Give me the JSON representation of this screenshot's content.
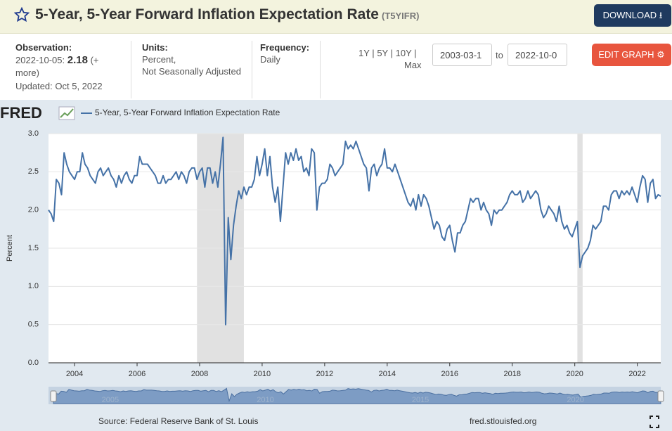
{
  "header": {
    "title": "5-Year, 5-Year Forward Inflation Expectation Rate",
    "series_id": "(T5YIFR)",
    "download": "DOWNLOAD"
  },
  "observation": {
    "label": "Observation:",
    "date": "2022-10-05:",
    "value": 2.18,
    "more": "(+ more)",
    "updated": "Updated: Oct 5, 2022"
  },
  "units": {
    "label": "Units:",
    "line1": "Percent,",
    "line2": "Not Seasonally Adjusted"
  },
  "frequency": {
    "label": "Frequency:",
    "value": "Daily"
  },
  "range": {
    "buttons": [
      "1Y",
      "5Y",
      "10Y",
      "Max"
    ],
    "separator": "|",
    "start": "2003-03-1",
    "to": "to",
    "end": "2022-10-0",
    "edit": "EDIT GRAPH"
  },
  "footer": {
    "logo": "FRED",
    "source": "Source: Federal Reserve Bank of St. Louis",
    "site": "fred.stlouisfed.org"
  },
  "chart_data": {
    "type": "line",
    "y_label": "Percent",
    "xlim": [
      "2003-03",
      "2022-10"
    ],
    "xticks": [
      2004,
      2006,
      2008,
      2010,
      2012,
      2014,
      2016,
      2018,
      2020,
      2022
    ],
    "ylim": [
      0,
      3
    ],
    "yticks": [
      {
        "value": 0,
        "label": "0.0"
      },
      {
        "value": 0.5,
        "label": "0.5"
      },
      {
        "value": 1,
        "label": "1.0"
      },
      {
        "value": 1.5,
        "label": "1.5"
      },
      {
        "value": 2,
        "label": "2.0"
      },
      {
        "value": 2.5,
        "label": "2.5"
      },
      {
        "value": 3,
        "label": "3.0"
      }
    ],
    "grid": true,
    "shaded_periods": [
      {
        "start": "2007-12",
        "end": "2009-06"
      },
      {
        "start": "2020-02",
        "end": "2020-04"
      }
    ],
    "navigator_ticks": [
      2005,
      2010,
      2015,
      2020
    ],
    "x": [
      "2003-03",
      "2003-04",
      "2003-05",
      "2003-06",
      "2003-07",
      "2003-08",
      "2003-09",
      "2003-10",
      "2003-11",
      "2003-12",
      "2004-01",
      "2004-02",
      "2004-03",
      "2004-04",
      "2004-05",
      "2004-06",
      "2004-07",
      "2004-08",
      "2004-09",
      "2004-10",
      "2004-11",
      "2004-12",
      "2005-01",
      "2005-02",
      "2005-03",
      "2005-04",
      "2005-05",
      "2005-06",
      "2005-07",
      "2005-08",
      "2005-09",
      "2005-10",
      "2005-11",
      "2005-12",
      "2006-01",
      "2006-02",
      "2006-03",
      "2006-04",
      "2006-05",
      "2006-06",
      "2006-07",
      "2006-08",
      "2006-09",
      "2006-10",
      "2006-11",
      "2006-12",
      "2007-01",
      "2007-02",
      "2007-03",
      "2007-04",
      "2007-05",
      "2007-06",
      "2007-07",
      "2007-08",
      "2007-09",
      "2007-10",
      "2007-11",
      "2007-12",
      "2008-01",
      "2008-02",
      "2008-03",
      "2008-04",
      "2008-05",
      "2008-06",
      "2008-07",
      "2008-08",
      "2008-09",
      "2008-10",
      "2008-11",
      "2008-12",
      "2009-01",
      "2009-02",
      "2009-03",
      "2009-04",
      "2009-05",
      "2009-06",
      "2009-07",
      "2009-08",
      "2009-09",
      "2009-10",
      "2009-11",
      "2009-12",
      "2010-01",
      "2010-02",
      "2010-03",
      "2010-04",
      "2010-05",
      "2010-06",
      "2010-07",
      "2010-08",
      "2010-09",
      "2010-10",
      "2010-11",
      "2010-12",
      "2011-01",
      "2011-02",
      "2011-03",
      "2011-04",
      "2011-05",
      "2011-06",
      "2011-07",
      "2011-08",
      "2011-09",
      "2011-10",
      "2011-11",
      "2011-12",
      "2012-01",
      "2012-02",
      "2012-03",
      "2012-04",
      "2012-05",
      "2012-06",
      "2012-07",
      "2012-08",
      "2012-09",
      "2012-10",
      "2012-11",
      "2012-12",
      "2013-01",
      "2013-02",
      "2013-03",
      "2013-04",
      "2013-05",
      "2013-06",
      "2013-07",
      "2013-08",
      "2013-09",
      "2013-10",
      "2013-11",
      "2013-12",
      "2014-01",
      "2014-02",
      "2014-03",
      "2014-04",
      "2014-05",
      "2014-06",
      "2014-07",
      "2014-08",
      "2014-09",
      "2014-10",
      "2014-11",
      "2014-12",
      "2015-01",
      "2015-02",
      "2015-03",
      "2015-04",
      "2015-05",
      "2015-06",
      "2015-07",
      "2015-08",
      "2015-09",
      "2015-10",
      "2015-11",
      "2015-12",
      "2016-01",
      "2016-02",
      "2016-03",
      "2016-04",
      "2016-05",
      "2016-06",
      "2016-07",
      "2016-08",
      "2016-09",
      "2016-10",
      "2016-11",
      "2016-12",
      "2017-01",
      "2017-02",
      "2017-03",
      "2017-04",
      "2017-05",
      "2017-06",
      "2017-07",
      "2017-08",
      "2017-09",
      "2017-10",
      "2017-11",
      "2017-12",
      "2018-01",
      "2018-02",
      "2018-03",
      "2018-04",
      "2018-05",
      "2018-06",
      "2018-07",
      "2018-08",
      "2018-09",
      "2018-10",
      "2018-11",
      "2018-12",
      "2019-01",
      "2019-02",
      "2019-03",
      "2019-04",
      "2019-05",
      "2019-06",
      "2019-07",
      "2019-08",
      "2019-09",
      "2019-10",
      "2019-11",
      "2019-12",
      "2020-01",
      "2020-02",
      "2020-03",
      "2020-04",
      "2020-05",
      "2020-06",
      "2020-07",
      "2020-08",
      "2020-09",
      "2020-10",
      "2020-11",
      "2020-12",
      "2021-01",
      "2021-02",
      "2021-03",
      "2021-04",
      "2021-05",
      "2021-06",
      "2021-07",
      "2021-08",
      "2021-09",
      "2021-10",
      "2021-11",
      "2021-12",
      "2022-01",
      "2022-02",
      "2022-03",
      "2022-04",
      "2022-05",
      "2022-06",
      "2022-07",
      "2022-08",
      "2022-09",
      "2022-10"
    ],
    "series": [
      {
        "name": "5-Year, 5-Year Forward Inflation Expectation Rate",
        "color": "#4572a7",
        "values": [
          2.0,
          1.95,
          1.85,
          2.4,
          2.35,
          2.2,
          2.75,
          2.6,
          2.5,
          2.45,
          2.4,
          2.5,
          2.5,
          2.75,
          2.6,
          2.55,
          2.45,
          2.4,
          2.35,
          2.5,
          2.55,
          2.45,
          2.5,
          2.55,
          2.45,
          2.4,
          2.3,
          2.45,
          2.35,
          2.45,
          2.5,
          2.4,
          2.35,
          2.45,
          2.45,
          2.7,
          2.6,
          2.6,
          2.6,
          2.55,
          2.5,
          2.45,
          2.35,
          2.35,
          2.45,
          2.35,
          2.4,
          2.4,
          2.45,
          2.5,
          2.4,
          2.5,
          2.45,
          2.35,
          2.5,
          2.55,
          2.55,
          2.4,
          2.5,
          2.55,
          2.3,
          2.55,
          2.55,
          2.35,
          2.5,
          2.3,
          2.6,
          2.95,
          0.5,
          1.9,
          1.35,
          1.8,
          2.05,
          2.25,
          2.15,
          2.3,
          2.2,
          2.3,
          2.3,
          2.4,
          2.7,
          2.45,
          2.6,
          2.8,
          2.45,
          2.7,
          2.3,
          2.1,
          2.3,
          1.85,
          2.3,
          2.75,
          2.6,
          2.75,
          2.65,
          2.8,
          2.65,
          2.7,
          2.5,
          2.55,
          2.45,
          2.8,
          2.75,
          2.0,
          2.3,
          2.35,
          2.35,
          2.4,
          2.6,
          2.55,
          2.45,
          2.5,
          2.55,
          2.6,
          2.9,
          2.8,
          2.85,
          2.8,
          2.9,
          2.8,
          2.7,
          2.6,
          2.55,
          2.25,
          2.55,
          2.6,
          2.45,
          2.55,
          2.6,
          2.8,
          2.55,
          2.55,
          2.5,
          2.6,
          2.5,
          2.4,
          2.3,
          2.2,
          2.1,
          2.05,
          2.15,
          2.0,
          2.2,
          2.05,
          2.2,
          2.15,
          2.05,
          1.9,
          1.75,
          1.85,
          1.8,
          1.65,
          1.6,
          1.75,
          1.8,
          1.6,
          1.45,
          1.7,
          1.7,
          1.8,
          1.85,
          2.0,
          2.15,
          2.1,
          2.15,
          2.15,
          2.0,
          2.1,
          2.0,
          1.95,
          1.8,
          2.0,
          1.95,
          2.0,
          2.0,
          2.05,
          2.1,
          2.2,
          2.25,
          2.2,
          2.2,
          2.25,
          2.1,
          2.15,
          2.25,
          2.15,
          2.2,
          2.25,
          2.2,
          2.0,
          1.9,
          1.95,
          2.05,
          2.0,
          1.95,
          1.85,
          2.05,
          1.85,
          1.75,
          1.8,
          1.7,
          1.65,
          1.75,
          1.85,
          1.25,
          1.4,
          1.45,
          1.5,
          1.6,
          1.8,
          1.75,
          1.8,
          1.85,
          2.05,
          2.05,
          2.0,
          2.2,
          2.25,
          2.25,
          2.15,
          2.25,
          2.2,
          2.25,
          2.2,
          2.3,
          2.2,
          2.1,
          2.3,
          2.45,
          2.4,
          2.1,
          2.35,
          2.4,
          2.15,
          2.2,
          2.18
        ]
      }
    ]
  }
}
